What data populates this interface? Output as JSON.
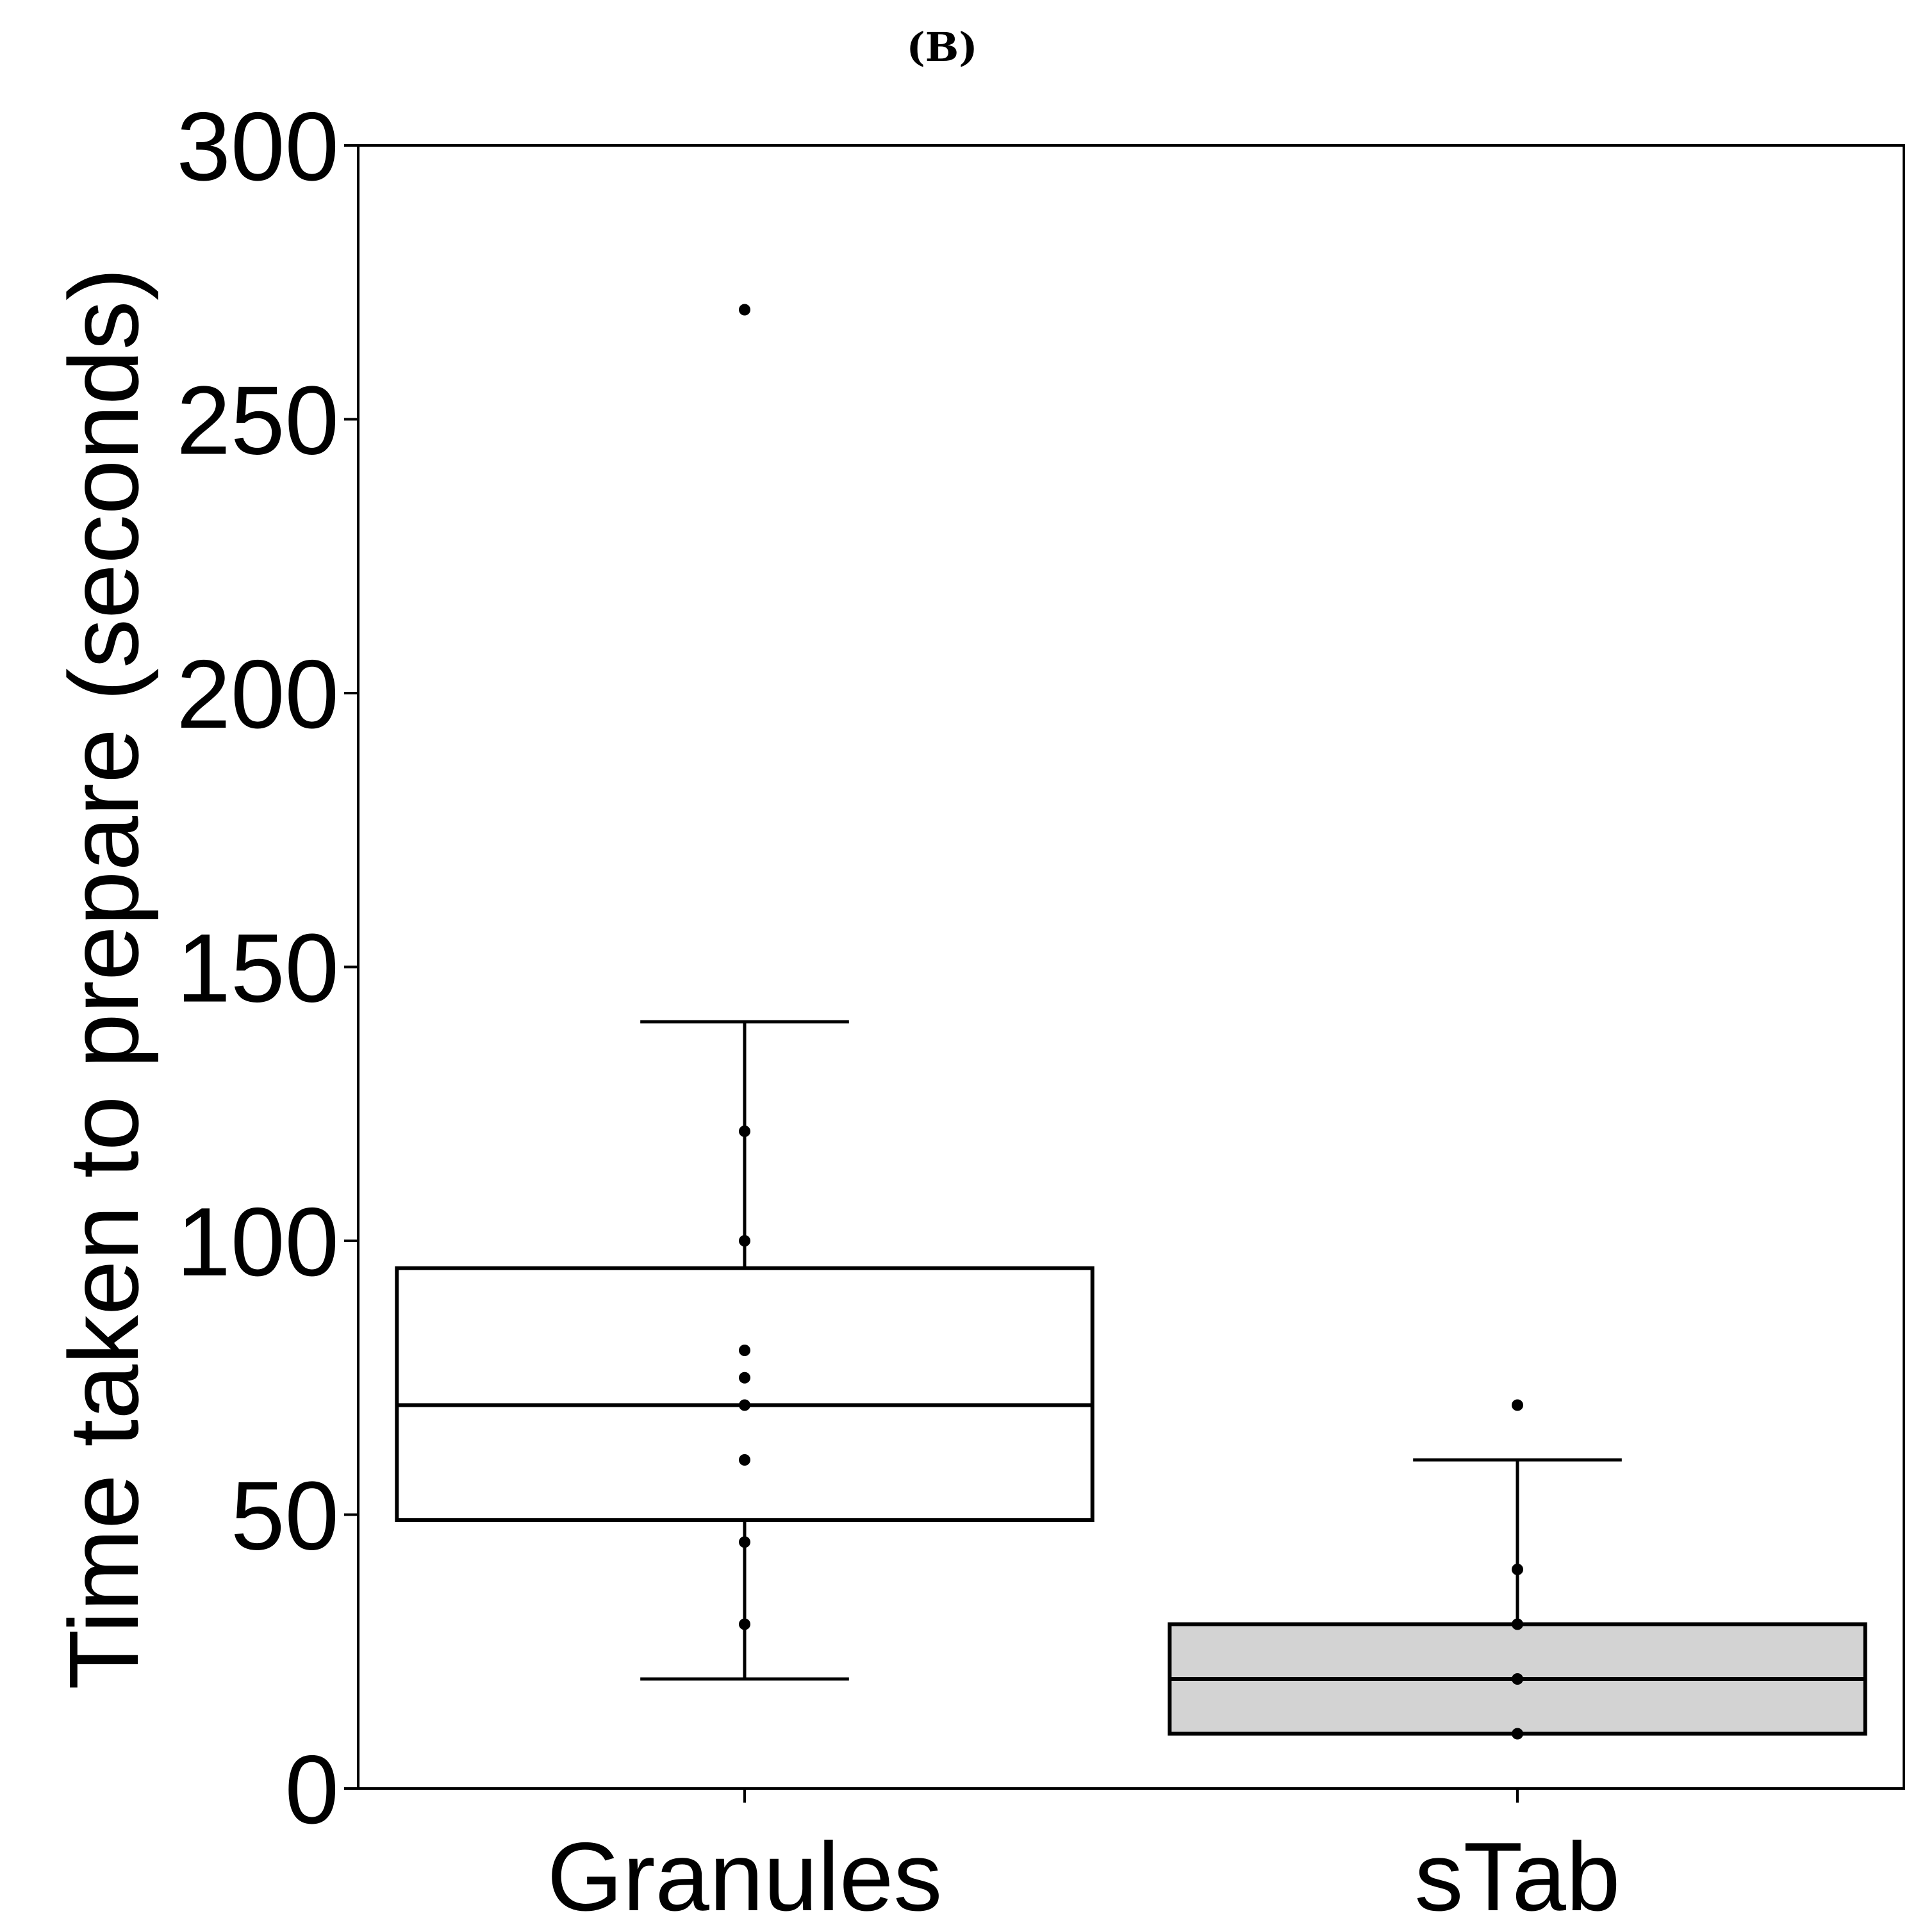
{
  "chart_data": {
    "type": "box",
    "panel_label": "(B)",
    "title": "",
    "xlabel": "",
    "ylabel": "Time taken to prepare (seconds)",
    "ylim": [
      0,
      300
    ],
    "yticks": [
      0,
      50,
      100,
      150,
      200,
      250,
      300
    ],
    "grid": false,
    "legend": "none",
    "categories": [
      "Granules",
      "sTab"
    ],
    "boxes": [
      {
        "category": "Granules",
        "fill": "#ffffff",
        "whisker_low": 20,
        "q1": 49,
        "median": 70,
        "q3": 95,
        "whisker_high": 140,
        "outliers": [
          270
        ],
        "points": [
          30,
          45,
          60,
          70,
          75,
          80,
          100,
          120,
          270
        ]
      },
      {
        "category": "sTab",
        "fill": "#d3d3d3",
        "whisker_low": 10,
        "q1": 10,
        "median": 20,
        "q3": 30,
        "whisker_high": 60,
        "outliers": [
          70
        ],
        "points": [
          10,
          20,
          30,
          40,
          70
        ]
      }
    ]
  }
}
